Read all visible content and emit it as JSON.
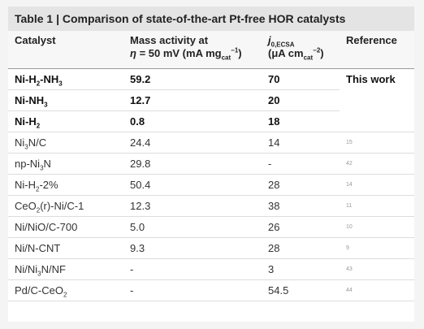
{
  "title": "Table 1 | Comparison of state-of-the-art Pt-free HOR catalysts",
  "table": {
    "header": [
      [
        [
          {
            "text": "Catalyst"
          }
        ]
      ],
      [
        [
          {
            "text": "Mass activity at"
          }
        ],
        [
          {
            "em": "η"
          },
          {
            "text": " = 50 mV (mA mg"
          },
          {
            "sub": "cat"
          },
          {
            "sup": "−1"
          },
          {
            "text": ")"
          }
        ]
      ],
      [
        [
          {
            "em": "j"
          },
          {
            "sub": "0,ECSA"
          }
        ],
        [
          {
            "text": "(μA cm"
          },
          {
            "sub": "cat"
          },
          {
            "sup": "−2"
          },
          {
            "text": ")"
          }
        ]
      ],
      [
        [
          {
            "text": "Reference"
          }
        ]
      ]
    ],
    "rows": [
      {
        "bold": true,
        "cells": [
          [
            {
              "text": "Ni-H"
            },
            {
              "sub": "2"
            },
            {
              "text": "-NH"
            },
            {
              "sub": "3"
            }
          ],
          "59.2",
          "70",
          "This work"
        ]
      },
      {
        "bold": true,
        "cells": [
          [
            {
              "text": "Ni-NH"
            },
            {
              "sub": "3"
            }
          ],
          "12.7",
          "20"
        ]
      },
      {
        "bold": true,
        "cells": [
          [
            {
              "text": "Ni-H"
            },
            {
              "sub": "2"
            }
          ],
          "0.8",
          "18"
        ]
      },
      {
        "bold": false,
        "cells": [
          [
            {
              "text": "Ni"
            },
            {
              "sub": "3"
            },
            {
              "text": "N/C"
            }
          ],
          "24.4",
          "14",
          "15"
        ]
      },
      {
        "bold": false,
        "cells": [
          [
            {
              "text": "np-Ni"
            },
            {
              "sub": "3"
            },
            {
              "text": "N"
            }
          ],
          "29.8",
          "-",
          "42"
        ]
      },
      {
        "bold": false,
        "cells": [
          [
            {
              "text": "Ni-H"
            },
            {
              "sub": "2"
            },
            {
              "text": "-2%"
            }
          ],
          "50.4",
          "28",
          "14"
        ]
      },
      {
        "bold": false,
        "cells": [
          [
            {
              "text": "CeO"
            },
            {
              "sub": "2"
            },
            {
              "text": "(r)-Ni/C-1"
            }
          ],
          "12.3",
          "38",
          "11"
        ]
      },
      {
        "bold": false,
        "cells": [
          "Ni/NiO/C-700",
          "5.0",
          "26",
          "10"
        ]
      },
      {
        "bold": false,
        "cells": [
          "Ni/N-CNT",
          "9.3",
          "28",
          "9"
        ]
      },
      {
        "bold": false,
        "cells": [
          [
            {
              "text": "Ni/Ni"
            },
            {
              "sub": "3"
            },
            {
              "text": "N/NF"
            }
          ],
          "-",
          "3",
          "43"
        ]
      },
      {
        "bold": false,
        "cells": [
          [
            {
              "text": "Pd/C-CeO"
            },
            {
              "sub": "2"
            }
          ],
          "-",
          "54.5",
          "44"
        ]
      }
    ]
  }
}
